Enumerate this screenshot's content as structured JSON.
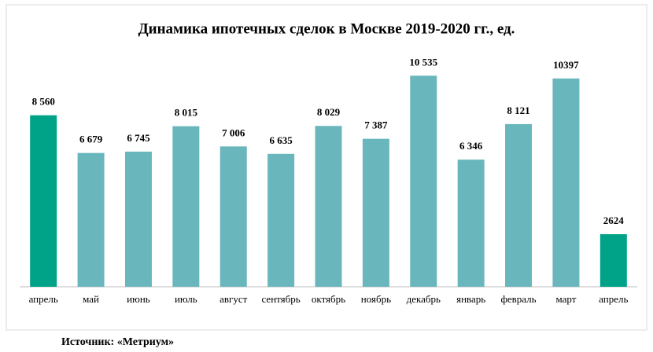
{
  "chart_data": {
    "type": "bar",
    "title": "Динамика ипотечных сделок в Москве 2019-2020 гг., ед.",
    "categories": [
      "апрель",
      "май",
      "июнь",
      "июль",
      "август",
      "сентябрь",
      "октябрь",
      "ноябрь",
      "декабрь",
      "январь",
      "февраль",
      "март",
      "апрель"
    ],
    "values": [
      8560,
      6679,
      6745,
      8015,
      7006,
      6635,
      8029,
      7387,
      10535,
      6346,
      8121,
      10397,
      2624
    ],
    "value_labels": [
      "8 560",
      "6 679",
      "6 745",
      "8 015",
      "7 006",
      "6 635",
      "8 029",
      "7 387",
      "10 535",
      "6 346",
      "8 121",
      "10397",
      "2624"
    ],
    "colors": [
      "#00a387",
      "#6ab6bd",
      "#6ab6bd",
      "#6ab6bd",
      "#6ab6bd",
      "#6ab6bd",
      "#6ab6bd",
      "#6ab6bd",
      "#6ab6bd",
      "#6ab6bd",
      "#6ab6bd",
      "#6ab6bd",
      "#00a387"
    ],
    "ylim": [
      0,
      12000
    ],
    "source": "Источник: «Метриум»"
  }
}
